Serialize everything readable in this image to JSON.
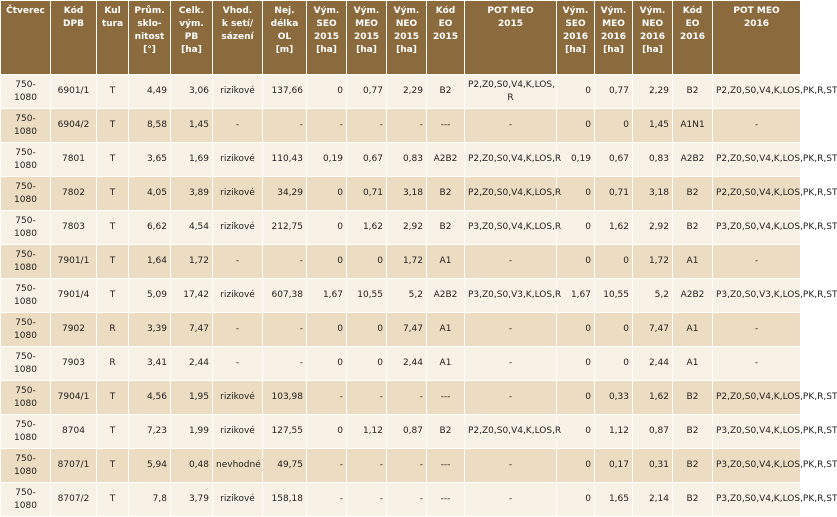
{
  "table": {
    "headers": [
      [
        "Čtverec"
      ],
      [
        "Kód",
        "DPB"
      ],
      [
        "Kul",
        "tura"
      ],
      [
        "Prům.",
        "sklo-",
        "nitost",
        "[°]"
      ],
      [
        "Celk.",
        "vým.",
        "PB",
        "[ha]"
      ],
      [
        "Vhod.",
        "k setí/",
        "sázení"
      ],
      [
        "Nej.",
        "délka",
        "OL",
        "[m]"
      ],
      [
        "Vým.",
        "SEO",
        "2015",
        "[ha]"
      ],
      [
        "Vým.",
        "MEO",
        "2015",
        "[ha]"
      ],
      [
        "Vým.",
        "NEO",
        "2015",
        "[ha]"
      ],
      [
        "Kód",
        "EO",
        "2015"
      ],
      [
        "POT MEO",
        "2015"
      ],
      [
        "Vým.",
        "SEO",
        "2016",
        "[ha]"
      ],
      [
        "Vým.",
        "MEO",
        "2016",
        "[ha]"
      ],
      [
        "Vým.",
        "NEO",
        "2016",
        "[ha]"
      ],
      [
        "Kód",
        "EO",
        "2016"
      ],
      [
        "POT MEO",
        "2016"
      ]
    ],
    "rows": [
      [
        "750-1080",
        "6901/1",
        "T",
        "4,49",
        "3,06",
        "rizikové",
        "137,66",
        "0",
        "0,77",
        "2,29",
        "B2",
        "P2,Z0,S0,V4,K,LOS, R",
        "0",
        "0,77",
        "2,29",
        "B2",
        "P2,Z0,S0,V4,K,LOS,PK,R,ST"
      ],
      [
        "750-1080",
        "6904/2",
        "T",
        "8,58",
        "1,45",
        "-",
        "-",
        "-",
        "-",
        "-",
        "---",
        "-",
        "0",
        "0",
        "1,45",
        "A1N1",
        "-"
      ],
      [
        "750-1080",
        "7801",
        "T",
        "3,65",
        "1,69",
        "rizikové",
        "110,43",
        "0,19",
        "0,67",
        "0,83",
        "A2B2",
        "P2,Z0,S0,V4,K,LOS,R",
        "0,19",
        "0,67",
        "0,83",
        "A2B2",
        "P2,Z0,S0,V4,K,LOS,PK,R,ST"
      ],
      [
        "750-1080",
        "7802",
        "T",
        "4,05",
        "3,89",
        "rizikové",
        "34,29",
        "0",
        "0,71",
        "3,18",
        "B2",
        "P2,Z0,S0,V4,K,LOS,R",
        "0",
        "0,71",
        "3,18",
        "B2",
        "P2,Z0,S0,V4,K,LOS,PK,R,ST"
      ],
      [
        "750-1080",
        "7803",
        "T",
        "6,62",
        "4,54",
        "rizikové",
        "212,75",
        "0",
        "1,62",
        "2,92",
        "B2",
        "P3,Z0,S0,V4,K,LOS,R",
        "0",
        "1,62",
        "2,92",
        "B2",
        "P3,Z0,S0,V4,K,LOS,PK,R,ST"
      ],
      [
        "750-1080",
        "7901/1",
        "T",
        "1,64",
        "1,72",
        "-",
        "-",
        "0",
        "0",
        "1,72",
        "A1",
        "-",
        "0",
        "0",
        "1,72",
        "A1",
        "-"
      ],
      [
        "750-1080",
        "7901/4",
        "T",
        "5,09",
        "17,42",
        "rizikové",
        "607,38",
        "1,67",
        "10,55",
        "5,2",
        "A2B2",
        "P3,Z0,S0,V3,K,LOS,R",
        "1,67",
        "10,55",
        "5,2",
        "A2B2",
        "P3,Z0,S0,V3,K,LOS,PK,R,ST"
      ],
      [
        "750-1080",
        "7902",
        "R",
        "3,39",
        "7,47",
        "-",
        "-",
        "0",
        "0",
        "7,47",
        "A1",
        "-",
        "0",
        "0",
        "7,47",
        "A1",
        "-"
      ],
      [
        "750-1080",
        "7903",
        "R",
        "3,41",
        "2,44",
        "-",
        "-",
        "0",
        "0",
        "2,44",
        "A1",
        "-",
        "0",
        "0",
        "2,44",
        "A1",
        "-"
      ],
      [
        "750-1080",
        "7904/1",
        "T",
        "4,56",
        "1,95",
        "rizikové",
        "103,98",
        "-",
        "-",
        "-",
        "---",
        "-",
        "0",
        "0,33",
        "1,62",
        "B2",
        "P2,Z0,S0,V4,K,LOS,PK,R,ST"
      ],
      [
        "750-1080",
        "8704",
        "T",
        "7,23",
        "1,99",
        "rizikové",
        "127,55",
        "0",
        "1,12",
        "0,87",
        "B2",
        "P2,Z0,S0,V4,K,LOS,R",
        "0",
        "1,12",
        "0,87",
        "B2",
        "P3,Z0,S0,V4,K,LOS,PK,R,ST"
      ],
      [
        "750-1080",
        "8707/1",
        "T",
        "5,94",
        "0,48",
        "nevhodné",
        "49,75",
        "-",
        "-",
        "-",
        "---",
        "-",
        "0",
        "0,17",
        "0,31",
        "B2",
        "P3,Z0,S0,V4,K,LOS,PK,R,ST"
      ],
      [
        "750-1080",
        "8707/2",
        "T",
        "7,8",
        "3,79",
        "rizikové",
        "158,18",
        "-",
        "-",
        "-",
        "---",
        "-",
        "0",
        "1,65",
        "2,14",
        "B2",
        "P3,Z0,S0,V4,K,LOS,PK,R,ST"
      ]
    ]
  }
}
